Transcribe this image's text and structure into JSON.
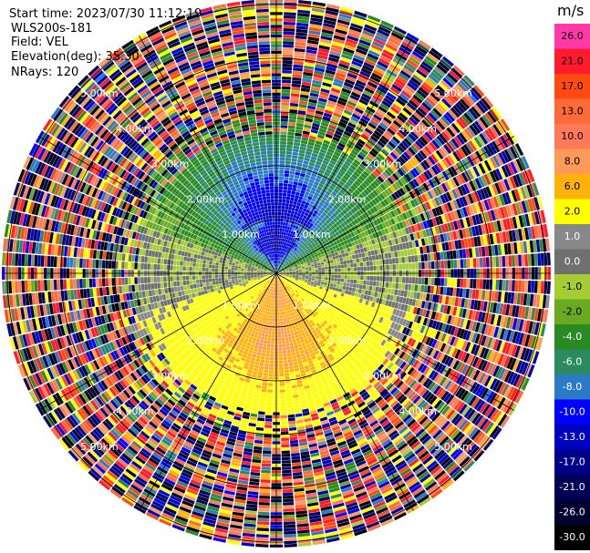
{
  "header": {
    "lines": [
      "Start time: 2023/07/30 11:12:19",
      "WLS200s-181",
      "Field: VEL",
      "Elevation(deg): 35.30",
      "NRays: 120"
    ]
  },
  "chart_data": {
    "type": "ppi",
    "field": "VEL",
    "instrument": "WLS200s-181",
    "start_time": "2023/07/30 11:12:19",
    "elevation_deg": 35.3,
    "n_rays": 120,
    "range_rings_km": [
      1.0,
      2.0,
      3.0,
      4.0,
      5.0
    ],
    "range_labels": [
      "1.00km",
      "2.00km",
      "3.00km",
      "4.00km",
      "5.00km"
    ],
    "azimuth_lines_deg": [
      0,
      30,
      60,
      90,
      120,
      150,
      180,
      210,
      240,
      270,
      300,
      330
    ],
    "velocity_pattern": {
      "north_sector": "negative (-1 to -13 m/s, strongest near 1-2 km)",
      "south_sector": "positive (1 to 8 m/s)",
      "east_west_edges": "near zero (-1 to 1 m/s)",
      "beyond_3_km": "noise (random values across full scale)"
    },
    "colorbar": {
      "unit": "m/s",
      "ticks": [
        "26.0",
        "21.0",
        "17.0",
        "13.0",
        "10.0",
        "8.0",
        "6.0",
        "2.0",
        "1.0",
        "0.0",
        "-1.0",
        "-2.0",
        "-4.0",
        "-6.0",
        "-8.0",
        "-10.0",
        "-13.0",
        "-17.0",
        "-21.0",
        "-26.0",
        "-30.0"
      ],
      "colors": [
        "#ff3aa8",
        "#ff1a2e",
        "#ff4a10",
        "#ff6a3a",
        "#ff7a58",
        "#ff9a58",
        "#ffb20a",
        "#ffff00",
        "#888888",
        "#707070",
        "#a6cc33",
        "#6aaa22",
        "#2a8a22",
        "#2a8a60",
        "#2a7ac8",
        "#0000ff",
        "#0000c0",
        "#000088",
        "#000055",
        "#000030",
        "#000000"
      ],
      "tick_text_colors": [
        "#000",
        "#000",
        "#000",
        "#000",
        "#000",
        "#000",
        "#000",
        "#000",
        "#fff",
        "#fff",
        "#000",
        "#000",
        "#fff",
        "#fff",
        "#fff",
        "#fff",
        "#fff",
        "#fff",
        "#fff",
        "#fff",
        "#fff"
      ]
    }
  }
}
